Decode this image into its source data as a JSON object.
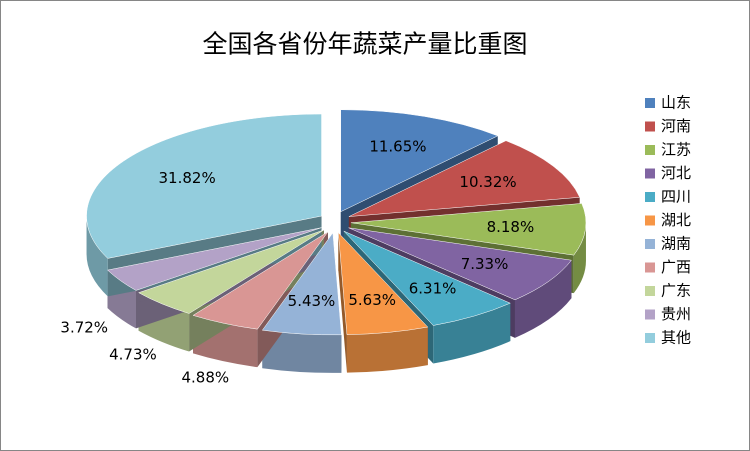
{
  "chart_data": {
    "type": "pie",
    "title": "全国各省份年蔬菜产量比重图",
    "categories": [
      "山东",
      "河南",
      "江苏",
      "河北",
      "四川",
      "湖北",
      "湖南",
      "广西",
      "广东",
      "贵州",
      "其他"
    ],
    "values": [
      11.65,
      10.32,
      8.18,
      7.33,
      6.31,
      5.63,
      5.43,
      4.88,
      4.73,
      3.72,
      31.82
    ],
    "value_labels": [
      "11.65%",
      "10.32%",
      "8.18%",
      "7.33%",
      "6.31%",
      "5.63%",
      "5.43%",
      "4.88%",
      "4.73%",
      "3.72%",
      "31.82%"
    ],
    "colors": [
      "#4f81bd",
      "#c0504d",
      "#9bbb59",
      "#8064a2",
      "#4bacc6",
      "#f79646",
      "#95b3d7",
      "#d99694",
      "#c3d69b",
      "#b3a2c7",
      "#93cddd"
    ],
    "legend": "right"
  }
}
